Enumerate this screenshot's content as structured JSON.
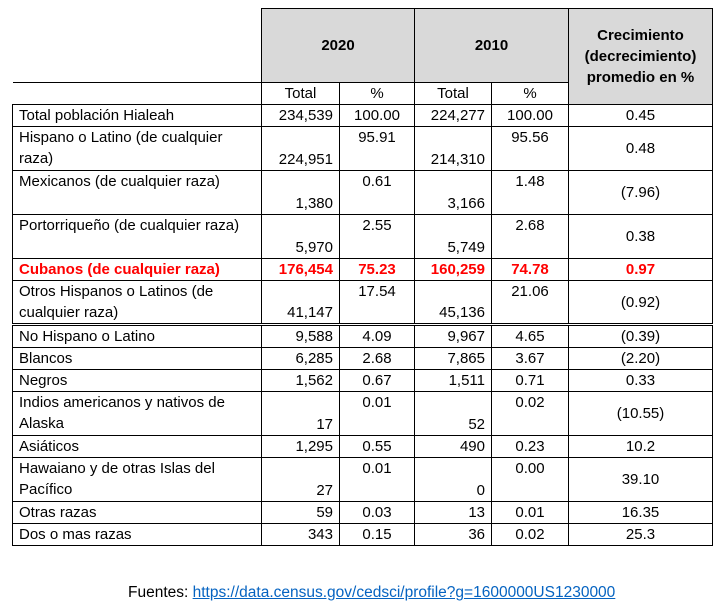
{
  "header": {
    "year1": "2020",
    "year2": "2010",
    "growth": "Crecimiento (decrecimiento) promedio en %",
    "total": "Total",
    "pct": "%"
  },
  "rows": [
    {
      "label": "Total población Hialeah",
      "t2020": "234,539",
      "p2020": "100.00",
      "t2010": "224,277",
      "p2010": "100.00",
      "growth": "0.45"
    },
    {
      "label": "Hispano o Latino (de cualquier raza)",
      "t2020": "224,951",
      "p2020": "95.91",
      "t2010": "214,310",
      "p2010": "95.56",
      "growth": "0.48"
    },
    {
      "label": "Mexicanos (de cualquier raza)",
      "t2020": "1,380",
      "p2020": "0.61",
      "t2010": "3,166",
      "p2010": "1.48",
      "growth": "(7.96)"
    },
    {
      "label": "Portorriqueño (de cualquier raza)",
      "t2020": "5,970",
      "p2020": "2.55",
      "t2010": "5,749",
      "p2010": "2.68",
      "growth": "0.38"
    },
    {
      "label": "Cubanos (de cualquier raza)",
      "t2020": "176,454",
      "p2020": "75.23",
      "t2010": "160,259",
      "p2010": "74.78",
      "growth": "0.97"
    },
    {
      "label": "Otros Hispanos o Latinos (de cualquier raza)",
      "t2020": "41,147",
      "p2020": "17.54",
      "t2010": "45,136",
      "p2010": "21.06",
      "growth": "(0.92)"
    },
    {
      "label": "No Hispano o Latino",
      "t2020": "9,588",
      "p2020": "4.09",
      "t2010": "9,967",
      "p2010": "4.65",
      "growth": "(0.39)"
    },
    {
      "label": "Blancos",
      "t2020": "6,285",
      "p2020": "2.68",
      "t2010": "7,865",
      "p2010": "3.67",
      "growth": "(2.20)"
    },
    {
      "label": "Negros",
      "t2020": "1,562",
      "p2020": "0.67",
      "t2010": "1,511",
      "p2010": "0.71",
      "growth": "0.33"
    },
    {
      "label": "Indios americanos y nativos de Alaska",
      "t2020": "17",
      "p2020": "0.01",
      "t2010": "52",
      "p2010": "0.02",
      "growth": "(10.55)"
    },
    {
      "label": "Asiáticos",
      "t2020": "1,295",
      "p2020": "0.55",
      "t2010": "490",
      "p2010": "0.23",
      "growth": "10.2"
    },
    {
      "label": "Hawaiano y de otras Islas del Pacífico",
      "t2020": "27",
      "p2020": "0.01",
      "t2010": "0",
      "p2010": "0.00",
      "growth": "39.10"
    },
    {
      "label": "Otras razas",
      "t2020": "59",
      "p2020": "0.03",
      "t2010": "13",
      "p2010": "0.01",
      "growth": "16.35"
    },
    {
      "label": "Dos o mas razas",
      "t2020": "343",
      "p2020": "0.15",
      "t2010": "36",
      "p2010": "0.02",
      "growth": "25.3"
    }
  ],
  "source": {
    "prefix": "Fuentes: ",
    "link": "https://data.census.gov/cedsci/profile?g=1600000US1230000"
  }
}
